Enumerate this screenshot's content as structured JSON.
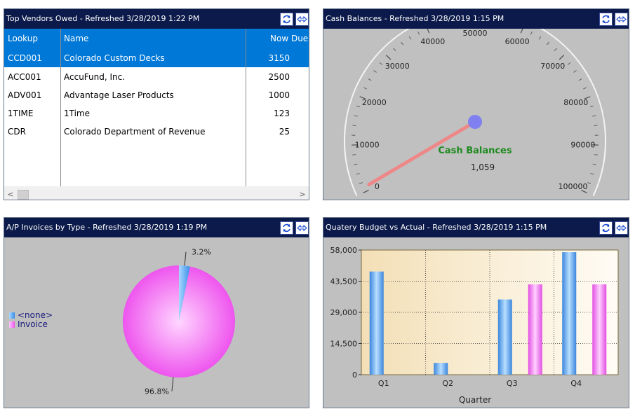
{
  "vendors_panel": {
    "title": "Top Vendors Owed - Refreshed  3/28/2019  1:22 PM",
    "columns": {
      "lookup": "Lookup",
      "name": "Name",
      "now_due": "Now Due"
    },
    "rows": [
      {
        "lookup": "CCD001",
        "name": "Colorado Custom Decks",
        "now_due": "3150"
      },
      {
        "lookup": "ACC001",
        "name": "AccuFund, Inc.",
        "now_due": "2500"
      },
      {
        "lookup": "ADV001",
        "name": "Advantage Laser Products",
        "now_due": "1000"
      },
      {
        "lookup": "1TIME",
        "name": "1Time",
        "now_due": "123"
      },
      {
        "lookup": "CDR",
        "name": "Colorado Department of Revenue",
        "now_due": "25"
      }
    ],
    "scroll_left": "<",
    "scroll_right": ">"
  },
  "cash_panel": {
    "title": "Cash Balances - Refreshed  3/28/2019  1:15 PM",
    "gauge": {
      "label": "Cash Balances",
      "value_text": "1,059",
      "value": 1059,
      "min": 0,
      "max": 100000,
      "tick_labels": [
        "0",
        "10000",
        "20000",
        "30000",
        "40000",
        "50000",
        "60000",
        "70000",
        "80000",
        "90000",
        "100000"
      ],
      "needle_color": "#ee8888",
      "hub_color": "#8080f0",
      "label_color": "#1f8a1f"
    }
  },
  "ap_panel": {
    "title": "A/P Invoices by Type - Refreshed  3/28/2019  1:19 PM",
    "chart_data": {
      "type": "pie",
      "slices": [
        {
          "name": "<none>",
          "percent": 3.2,
          "label": "3.2%",
          "color": "#4aa0f0"
        },
        {
          "name": "Invoice",
          "percent": 96.8,
          "label": "96.8%",
          "color": "#ee66ee"
        }
      ],
      "legend": "left"
    }
  },
  "budget_panel": {
    "title": "Quatery Budget vs Actual - Refreshed  3/28/2019  1:15 PM",
    "chart_data": {
      "type": "bar",
      "categories": [
        "Q1",
        "Q2",
        "Q3",
        "Q4"
      ],
      "series": [
        {
          "values": [
            48000,
            5500,
            35000,
            57000
          ],
          "color": "#4a9ae8"
        },
        {
          "values": [
            0,
            0,
            42000,
            42000
          ],
          "color": "#ee66ee"
        }
      ],
      "xlabel": "Quarter",
      "ylim": [
        0,
        58000
      ],
      "yticks": [
        "0",
        "14,500",
        "29,000",
        "43,500",
        "58,000"
      ],
      "ytick_values": [
        0,
        14500,
        29000,
        43500,
        58000
      ],
      "grid": true
    }
  }
}
